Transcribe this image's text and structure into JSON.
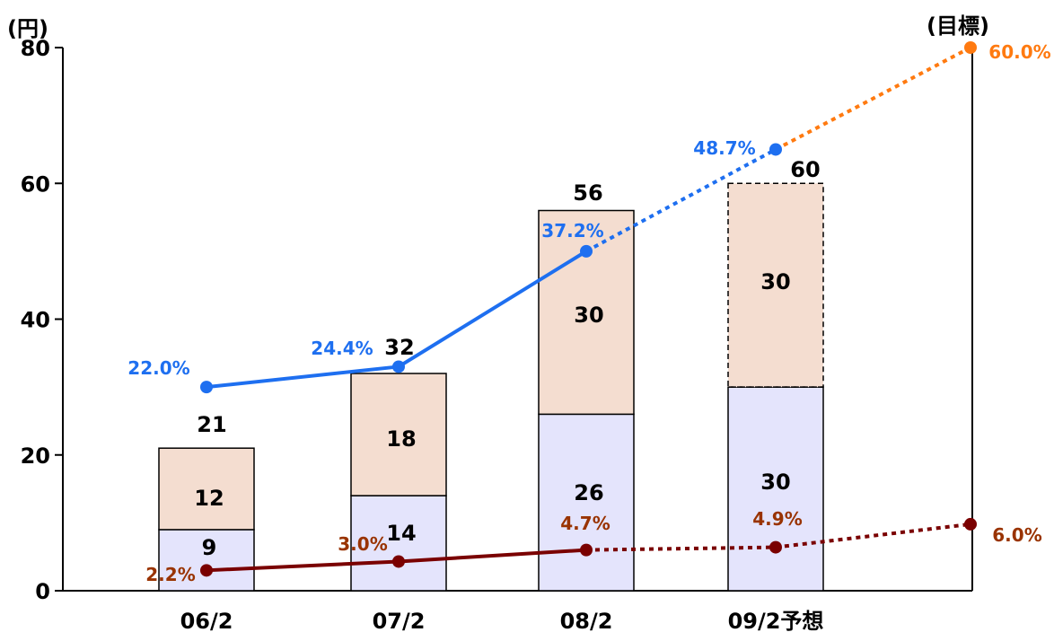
{
  "chart_data": {
    "type": "bar",
    "y_unit": "(円)",
    "right_note": "(目標)",
    "ylim": [
      0,
      80
    ],
    "yticks": [
      0,
      20,
      40,
      60,
      80
    ],
    "categories": [
      "06/2",
      "07/2",
      "08/2",
      "09/2予想"
    ],
    "series": [
      {
        "values": [
          9,
          14,
          26,
          30
        ],
        "color": "#e4e4fc",
        "labels": [
          "9",
          "14",
          "26",
          "30"
        ]
      },
      {
        "values": [
          12,
          18,
          30,
          30
        ],
        "color": "#f4ddd0",
        "labels": [
          "12",
          "18",
          "30",
          "30"
        ]
      }
    ],
    "totals": [
      "21",
      "32",
      "56",
      "60"
    ],
    "forecast_index": 3,
    "lines": [
      {
        "color": "#1e6ff0",
        "target_color": "#ff7a10",
        "points": [
          30.0,
          33.0,
          50.0,
          65.0,
          80.0
        ],
        "labels": [
          "22.0%",
          "24.4%",
          "37.2%",
          "48.7%",
          "60.0%"
        ]
      },
      {
        "color": "#7a0000",
        "label_color": "#993300",
        "points": [
          3.0,
          4.3,
          6.0,
          6.4,
          9.8
        ],
        "labels": [
          "2.2%",
          "3.0%",
          "4.7%",
          "4.9%",
          "6.0%"
        ]
      }
    ]
  }
}
